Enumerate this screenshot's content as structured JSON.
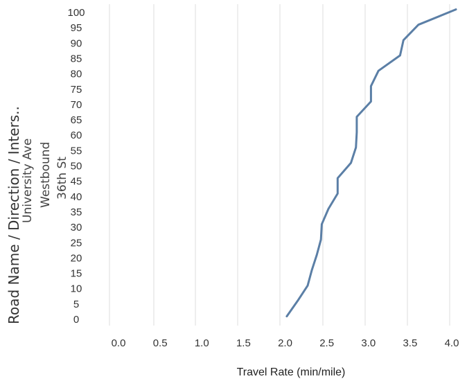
{
  "row_headers": {
    "title": "Road Name / Direction / Inters..",
    "road_name": "University Ave",
    "direction": "Westbound",
    "intersection": "36th St"
  },
  "colors": {
    "line": "#5b7fa6",
    "grid": "#dddddd",
    "text": "#333333"
  },
  "chart_data": {
    "type": "line",
    "xlabel": "Travel Rate (min/mile)",
    "ylabel": "",
    "xlim": [
      -0.15,
      4.15
    ],
    "ylim": [
      0,
      100
    ],
    "x_ticks": [
      "0.0",
      "0.5",
      "1.0",
      "1.5",
      "2.0",
      "2.5",
      "3.0",
      "3.5",
      "4.0"
    ],
    "y_ticks": [
      "0",
      "5",
      "10",
      "15",
      "20",
      "25",
      "30",
      "35",
      "40",
      "45",
      "50",
      "55",
      "60",
      "65",
      "70",
      "75",
      "80",
      "85",
      "90",
      "95",
      "100"
    ],
    "grid": "vertical",
    "series": [
      {
        "points": [
          {
            "x": 2.02,
            "y": 1
          },
          {
            "x": 2.15,
            "y": 6
          },
          {
            "x": 2.27,
            "y": 11
          },
          {
            "x": 2.32,
            "y": 16
          },
          {
            "x": 2.38,
            "y": 21
          },
          {
            "x": 2.43,
            "y": 26
          },
          {
            "x": 2.44,
            "y": 31
          },
          {
            "x": 2.52,
            "y": 36
          },
          {
            "x": 2.63,
            "y": 41
          },
          {
            "x": 2.63,
            "y": 46
          },
          {
            "x": 2.79,
            "y": 51
          },
          {
            "x": 2.85,
            "y": 56
          },
          {
            "x": 2.86,
            "y": 61
          },
          {
            "x": 2.86,
            "y": 66
          },
          {
            "x": 3.03,
            "y": 71
          },
          {
            "x": 3.03,
            "y": 76
          },
          {
            "x": 3.12,
            "y": 81
          },
          {
            "x": 3.38,
            "y": 86
          },
          {
            "x": 3.42,
            "y": 91
          },
          {
            "x": 3.6,
            "y": 96
          },
          {
            "x": 4.05,
            "y": 101
          }
        ]
      }
    ]
  }
}
